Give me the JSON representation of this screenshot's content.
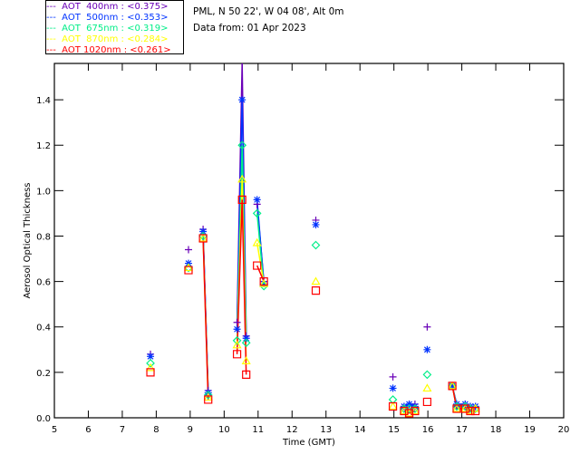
{
  "header": {
    "site": "PML, N 50 22', W 04 08', Alt 0m",
    "date": "Data from: 01 Apr 2023"
  },
  "chart_data": {
    "type": "scatter",
    "title": "",
    "xlabel": "Time (GMT)",
    "ylabel": "Aerosol Optical Thickness",
    "xlim": [
      5,
      20
    ],
    "ylim": [
      0,
      1.56
    ],
    "xticks": [
      5,
      6,
      7,
      8,
      9,
      10,
      11,
      12,
      13,
      14,
      15,
      16,
      17,
      18,
      19,
      20
    ],
    "yticks": [
      "0.0",
      "0.2",
      "0.4",
      "0.6",
      "0.8",
      "1.0",
      "1.2",
      "1.4"
    ],
    "legend_position": "top-left (outside)",
    "x": [
      7.83,
      8.95,
      9.38,
      9.53,
      10.38,
      10.53,
      10.65,
      10.97,
      11.17,
      12.7,
      14.97,
      15.3,
      15.45,
      15.62,
      15.98,
      16.72,
      16.85,
      17.1,
      17.25,
      17.4
    ],
    "series": [
      {
        "name": "AOT  400nm : <0.375>",
        "color": "#6a00b8",
        "marker": "plus",
        "values": [
          0.28,
          0.74,
          0.83,
          0.12,
          0.42,
          1.56,
          0.36,
          0.94,
          0.6,
          0.87,
          0.18,
          0.05,
          0.06,
          0.06,
          0.4,
          0.14,
          0.05,
          0.06,
          0.05,
          0.05
        ]
      },
      {
        "name": "AOT  500nm : <0.353>",
        "color": "#0033ff",
        "marker": "asterisk",
        "values": [
          0.27,
          0.68,
          0.82,
          0.11,
          0.39,
          1.4,
          0.35,
          0.96,
          0.59,
          0.85,
          0.13,
          0.05,
          0.06,
          0.05,
          0.3,
          0.14,
          0.06,
          0.06,
          0.05,
          0.05
        ]
      },
      {
        "name": "AOT  675nm : <0.319>",
        "color": "#00ee88",
        "marker": "diamond",
        "values": [
          0.24,
          0.66,
          0.8,
          0.1,
          0.34,
          1.2,
          0.33,
          0.9,
          0.58,
          0.76,
          0.08,
          0.04,
          0.04,
          0.04,
          0.19,
          0.14,
          0.05,
          0.05,
          0.04,
          0.04
        ]
      },
      {
        "name": "AOT  870nm : <0.284>",
        "color": "#ffff00",
        "marker": "triangle",
        "values": [
          0.22,
          0.66,
          0.79,
          0.09,
          0.32,
          1.05,
          0.25,
          0.77,
          0.59,
          0.6,
          0.05,
          0.03,
          0.02,
          0.03,
          0.13,
          0.14,
          0.04,
          0.04,
          0.03,
          0.04
        ]
      },
      {
        "name": "AOT 1020nm : <0.261>",
        "color": "#ff0000",
        "marker": "square",
        "values": [
          0.2,
          0.65,
          0.79,
          0.08,
          0.28,
          0.96,
          0.19,
          0.67,
          0.6,
          0.56,
          0.05,
          0.03,
          0.02,
          0.03,
          0.07,
          0.14,
          0.04,
          0.04,
          0.03,
          0.03
        ]
      }
    ]
  }
}
